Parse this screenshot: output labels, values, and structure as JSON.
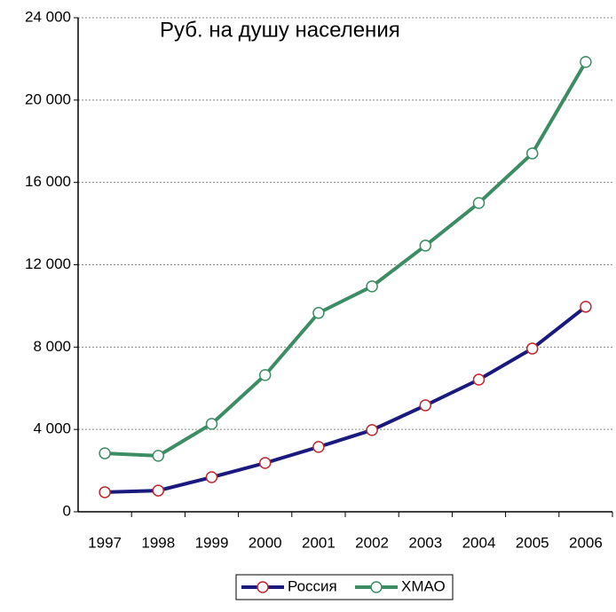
{
  "chart_data": {
    "type": "line",
    "title": "Руб.  на душу населения",
    "categories": [
      "1997",
      "1998",
      "1999",
      "2000",
      "2001",
      "2002",
      "2003",
      "2004",
      "2005",
      "2006"
    ],
    "series": [
      {
        "name": "Россия",
        "color": "#1a1a7e",
        "marker_color": "#c0262c",
        "values": [
          950,
          1030,
          1680,
          2370,
          3150,
          3970,
          5170,
          6420,
          7930,
          9960
        ]
      },
      {
        "name": "ХМАО",
        "color": "#3c8c64",
        "marker_color": "#3c8c64",
        "values": [
          2840,
          2720,
          4270,
          6640,
          9660,
          10950,
          12930,
          15000,
          17410,
          21850
        ]
      }
    ],
    "ylim": [
      0,
      24000
    ],
    "yticks": [
      0,
      {
        "value": 4000,
        "label": "4 000"
      },
      {
        "value": 8000,
        "label": "8 000"
      },
      {
        "value": 12000,
        "label": "12 000"
      },
      {
        "value": 16000,
        "label": "16 000"
      },
      {
        "value": 20000,
        "label": "20 000"
      },
      {
        "value": 24000,
        "label": "24 000"
      }
    ],
    "grid": true,
    "legend": "bottom"
  }
}
